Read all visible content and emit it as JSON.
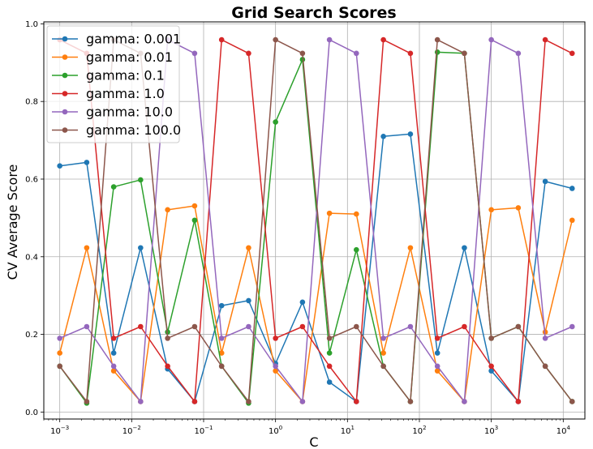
{
  "chart_data": {
    "type": "line",
    "title": "Grid Search Scores",
    "xlabel": "C",
    "ylabel": "CV Average Score",
    "xscale": "log",
    "xlim": [
      0.0006,
      20000
    ],
    "ylim": [
      -0.018,
      1.005
    ],
    "xticks": [
      {
        "value": 0.001,
        "label": "10",
        "exp": "−3"
      },
      {
        "value": 0.01,
        "label": "10",
        "exp": "−2"
      },
      {
        "value": 0.1,
        "label": "10",
        "exp": "−1"
      },
      {
        "value": 1,
        "label": "10",
        "exp": "0"
      },
      {
        "value": 10,
        "label": "10",
        "exp": "1"
      },
      {
        "value": 100,
        "label": "10",
        "exp": "2"
      },
      {
        "value": 1000,
        "label": "10",
        "exp": "3"
      },
      {
        "value": 10000,
        "label": "10",
        "exp": "4"
      }
    ],
    "yticks": [
      {
        "value": 0.0,
        "label": "0.0"
      },
      {
        "value": 0.2,
        "label": "0.2"
      },
      {
        "value": 0.4,
        "label": "0.4"
      },
      {
        "value": 0.6,
        "label": "0.6"
      },
      {
        "value": 0.8,
        "label": "0.8"
      },
      {
        "value": 1.0,
        "label": "1.0"
      }
    ],
    "grid": true,
    "legend_position": "top-left",
    "x": [
      0.001,
      0.00237,
      0.00562,
      0.0133,
      0.0316,
      0.075,
      0.178,
      0.422,
      1.0,
      2.37,
      5.62,
      13.3,
      31.6,
      75.0,
      178,
      422,
      1000,
      2370,
      5620,
      13300
    ],
    "series": [
      {
        "name": "gamma: 0.001",
        "color": "#1f77b4",
        "values": [
          0.634,
          0.643,
          0.152,
          0.423,
          0.111,
          0.027,
          0.274,
          0.287,
          0.125,
          0.283,
          0.077,
          0.027,
          0.71,
          0.716,
          0.152,
          0.423,
          0.106,
          0.027,
          0.594,
          0.576
        ]
      },
      {
        "name": "gamma: 0.01",
        "color": "#ff7f0e",
        "values": [
          0.152,
          0.423,
          0.106,
          0.027,
          0.521,
          0.531,
          0.152,
          0.423,
          0.106,
          0.027,
          0.512,
          0.51,
          0.152,
          0.423,
          0.106,
          0.027,
          0.521,
          0.526,
          0.206,
          0.494
        ]
      },
      {
        "name": "gamma: 0.1",
        "color": "#2ca02c",
        "values": [
          0.118,
          0.023,
          0.58,
          0.598,
          0.206,
          0.494,
          0.118,
          0.023,
          0.747,
          0.908,
          0.152,
          0.418,
          0.118,
          0.027,
          0.927,
          0.924,
          0.19,
          0.22,
          0.118,
          0.027
        ]
      },
      {
        "name": "gamma: 1.0",
        "color": "#d62728",
        "values": [
          0.959,
          0.924,
          0.19,
          0.22,
          0.118,
          0.027,
          0.959,
          0.924,
          0.19,
          0.22,
          0.118,
          0.027,
          0.959,
          0.924,
          0.19,
          0.22,
          0.118,
          0.027,
          0.959,
          0.924
        ]
      },
      {
        "name": "gamma: 10.0",
        "color": "#9467bd",
        "values": [
          0.19,
          0.22,
          0.118,
          0.027,
          0.959,
          0.924,
          0.19,
          0.22,
          0.118,
          0.027,
          0.959,
          0.924,
          0.19,
          0.22,
          0.118,
          0.027,
          0.959,
          0.924,
          0.19,
          0.22
        ]
      },
      {
        "name": "gamma: 100.0",
        "color": "#8c564b",
        "values": [
          0.118,
          0.027,
          0.959,
          0.924,
          0.19,
          0.22,
          0.118,
          0.027,
          0.959,
          0.924,
          0.19,
          0.22,
          0.118,
          0.027,
          0.959,
          0.924,
          0.19,
          0.22,
          0.118,
          0.027
        ]
      }
    ]
  }
}
